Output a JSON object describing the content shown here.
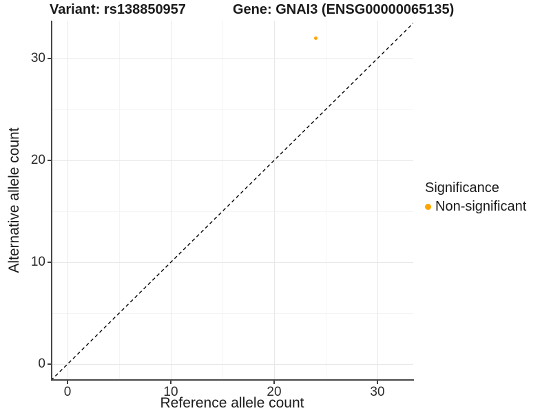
{
  "titles": {
    "variant": "Variant: rs138850957",
    "gene": "Gene: GNAI3 (ENSG00000065135)"
  },
  "axes": {
    "x_label": "Reference allele count",
    "y_label": "Alternative allele count",
    "x_tick_labels": [
      "0",
      "10",
      "20",
      "30"
    ],
    "y_tick_labels": [
      "0",
      "10",
      "20",
      "30"
    ]
  },
  "legend": {
    "title": "Significance",
    "items": [
      {
        "label": "Non-significant",
        "color": "#FFA500"
      }
    ]
  },
  "colors": {
    "point": "#FFA500",
    "grid_major": "#e8e8e8",
    "grid_minor": "#f4f4f4",
    "axis_line": "#474747",
    "dashed_line": "#000000",
    "tick_text": "#2b2b2b"
  },
  "chart_data": {
    "type": "scatter",
    "title": "Variant: rs138850957 | Gene: GNAI3 (ENSG00000065135)",
    "xlabel": "Reference allele count",
    "ylabel": "Alternative allele count",
    "xlim": [
      -1.6,
      33.6
    ],
    "ylim": [
      -1.6,
      33.6
    ],
    "x_ticks": [
      0,
      10,
      20,
      30
    ],
    "y_ticks": [
      0,
      10,
      20,
      30
    ],
    "x_minor_ticks": [
      5,
      15,
      25
    ],
    "y_minor_ticks": [
      5,
      15,
      25
    ],
    "grid": "major+minor",
    "legend_position": "right",
    "series": [
      {
        "name": "Non-significant",
        "color": "#FFA500",
        "points": [
          {
            "x": 24,
            "y": 32
          }
        ]
      }
    ],
    "reference_line": {
      "type": "identity y=x",
      "style": "dashed",
      "color": "#000000",
      "x_from": -1.6,
      "x_to": 33.6
    }
  }
}
